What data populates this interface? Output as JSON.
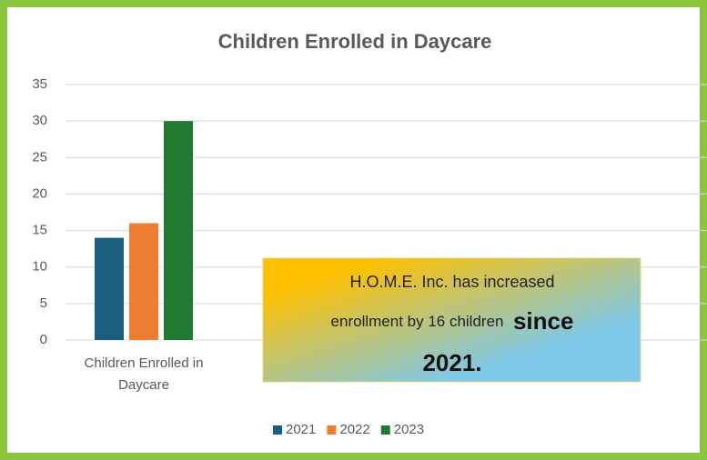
{
  "chart_data": {
    "type": "bar",
    "title": "Children Enrolled in Daycare",
    "categories": [
      "Children Enrolled in Daycare"
    ],
    "series": [
      {
        "name": "2021",
        "color": "#1b5e7e",
        "values": [
          14
        ]
      },
      {
        "name": "2022",
        "color": "#ed7d31",
        "values": [
          16
        ]
      },
      {
        "name": "2023",
        "color": "#217a31",
        "values": [
          30
        ]
      }
    ],
    "ylim": [
      0,
      35
    ],
    "yticks": [
      0,
      5,
      10,
      15,
      20,
      25,
      30,
      35
    ],
    "grid": true,
    "legend": "bottom",
    "annotation": [
      "H.O.M.E. Inc. has increased",
      "enrollment by 16 children",
      "since",
      "2021."
    ]
  }
}
